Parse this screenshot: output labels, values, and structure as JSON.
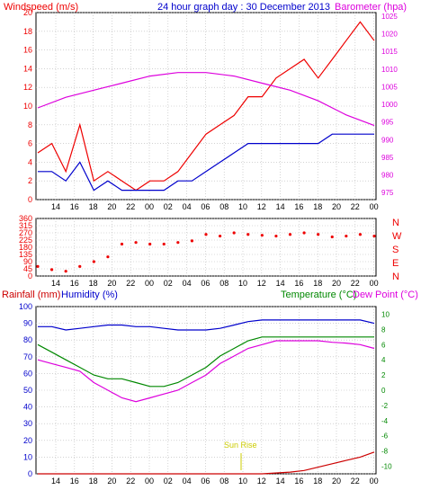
{
  "header": {
    "wind_title": "Windspeed (m/s)",
    "graph_title": "24 hour graph day : 30 December 2013",
    "baro_title": "Barometer (hpa)",
    "rain_title": "Rainfall (mm)",
    "humidity_title": "Humidity (%)",
    "temperature_title": "Temperature (°C)",
    "dewpoint_title": "Dew Point (°C)"
  },
  "annotations": {
    "sunrise": "Sun Rise"
  },
  "colors": {
    "background": "#ffffff",
    "grid": "#b8b8b8",
    "frame": "#000000",
    "axis_text": "#000000",
    "wind": "#ee0000",
    "gust": "#ee0000",
    "windspeed": "#0000cc",
    "barometer": "#dd00dd",
    "direction": "#ee0000",
    "humidity": "#0000cc",
    "temperature": "#008800",
    "dewpoint": "#dd00dd",
    "rain": "#cc0000",
    "sunrise": "#cccc00"
  },
  "chart_data": [
    {
      "type": "line",
      "id": "wind",
      "title": "Windspeed (m/s)",
      "x_ticks": [
        "14",
        "16",
        "18",
        "20",
        "22",
        "00",
        "02",
        "04",
        "06",
        "08",
        "10",
        "12",
        "14",
        "16",
        "18",
        "20",
        "22",
        "00"
      ],
      "y_ticks": [
        0,
        2,
        4,
        6,
        8,
        10,
        12,
        14,
        16,
        18,
        20
      ],
      "ylim": [
        0,
        20
      ],
      "y2_title": "Barometer (hpa)",
      "y2_ticks": [
        975,
        980,
        985,
        990,
        995,
        1000,
        1005,
        1010,
        1015,
        1020,
        1025
      ],
      "y2lim": [
        973,
        1026
      ],
      "grid": true,
      "series": [
        {
          "name": "gust",
          "axis": "left",
          "x": [
            0,
            1,
            2,
            3,
            4,
            5,
            6,
            7,
            8,
            9,
            10,
            11,
            12,
            13,
            14,
            15,
            16,
            17,
            18,
            19,
            20,
            21,
            22,
            23,
            24
          ],
          "y": [
            5,
            6,
            3,
            8,
            2,
            3,
            2,
            1,
            2,
            2,
            3,
            5,
            7,
            8,
            9,
            11,
            11,
            13,
            14,
            15,
            13,
            15,
            17,
            19,
            17
          ]
        },
        {
          "name": "speed",
          "axis": "left",
          "x": [
            0,
            1,
            2,
            3,
            4,
            5,
            6,
            7,
            8,
            9,
            10,
            11,
            12,
            13,
            14,
            15,
            16,
            17,
            18,
            19,
            20,
            21,
            22,
            23,
            24
          ],
          "y": [
            3,
            3,
            2,
            4,
            1,
            2,
            1,
            1,
            1,
            1,
            2,
            2,
            3,
            4,
            5,
            6,
            6,
            6,
            6,
            6,
            6,
            7,
            7,
            7,
            7
          ]
        },
        {
          "name": "barometer",
          "axis": "right",
          "x": [
            0,
            2,
            4,
            6,
            8,
            10,
            12,
            14,
            16,
            18,
            20,
            22,
            24
          ],
          "y": [
            999,
            1002,
            1004,
            1006,
            1008,
            1009,
            1009,
            1008,
            1006,
            1004,
            1001,
            997,
            994
          ]
        }
      ]
    },
    {
      "type": "scatter",
      "id": "direction",
      "x_ticks": [
        "14",
        "16",
        "18",
        "20",
        "22",
        "00",
        "02",
        "04",
        "06",
        "08",
        "10",
        "12",
        "14",
        "16",
        "18",
        "20",
        "22",
        "00"
      ],
      "y_ticks": [
        0,
        45,
        90,
        135,
        180,
        225,
        270,
        315,
        360
      ],
      "ylim": [
        0,
        360
      ],
      "y2_labels": [
        "N",
        "W",
        "S",
        "E",
        "N"
      ],
      "grid": true,
      "series": [
        {
          "name": "wind direction",
          "x": [
            0,
            1,
            2,
            3,
            4,
            5,
            6,
            7,
            8,
            9,
            10,
            11,
            12,
            13,
            14,
            15,
            16,
            17,
            18,
            19,
            20,
            21,
            22,
            23,
            24
          ],
          "y": [
            60,
            40,
            30,
            60,
            90,
            120,
            200,
            210,
            200,
            200,
            210,
            220,
            260,
            250,
            270,
            260,
            255,
            250,
            260,
            270,
            260,
            245,
            250,
            260,
            250
          ]
        }
      ]
    },
    {
      "type": "line",
      "id": "climate",
      "title": "Rainfall (mm)",
      "x_ticks": [
        "14",
        "16",
        "18",
        "20",
        "22",
        "00",
        "02",
        "04",
        "06",
        "08",
        "10",
        "12",
        "14",
        "16",
        "18",
        "20",
        "22",
        "00"
      ],
      "y_ticks": [
        0,
        10,
        20,
        30,
        40,
        50,
        60,
        70,
        80,
        90,
        100
      ],
      "ylim": [
        0,
        100
      ],
      "y2_title": "Temperature (°C)",
      "y2_ticks": [
        -10,
        -8,
        -6,
        -4,
        -2,
        0,
        2,
        4,
        6,
        8,
        10
      ],
      "y2lim": [
        -11,
        11
      ],
      "grid": true,
      "series": [
        {
          "name": "humidity",
          "axis": "left",
          "x": [
            0,
            1,
            2,
            3,
            4,
            5,
            6,
            7,
            8,
            9,
            10,
            11,
            12,
            13,
            14,
            15,
            16,
            17,
            18,
            19,
            20,
            21,
            22,
            23,
            24
          ],
          "y": [
            88,
            88,
            86,
            87,
            88,
            89,
            89,
            88,
            88,
            87,
            86,
            86,
            86,
            87,
            89,
            91,
            92,
            92,
            92,
            92,
            92,
            92,
            92,
            92,
            90
          ]
        },
        {
          "name": "temperature",
          "axis": "right",
          "x": [
            0,
            1,
            2,
            3,
            4,
            5,
            6,
            7,
            8,
            9,
            10,
            11,
            12,
            13,
            14,
            15,
            16,
            17,
            18,
            19,
            20,
            21,
            22,
            23,
            24
          ],
          "y": [
            6,
            5,
            4,
            3,
            2,
            1.5,
            1.5,
            1,
            0.5,
            0.5,
            1,
            2,
            3,
            4.5,
            5.5,
            6.5,
            7,
            7,
            7,
            7,
            7,
            7,
            7,
            7,
            7
          ]
        },
        {
          "name": "dewpoint",
          "axis": "right",
          "x": [
            0,
            1,
            2,
            3,
            4,
            5,
            6,
            7,
            8,
            9,
            10,
            11,
            12,
            13,
            14,
            15,
            16,
            17,
            18,
            19,
            20,
            21,
            22,
            23,
            24
          ],
          "y": [
            4,
            3.5,
            3,
            2.5,
            1,
            0,
            -1,
            -1.5,
            -1,
            -0.5,
            0,
            1,
            2,
            3.5,
            4.5,
            5.5,
            6,
            6.5,
            6.5,
            6.5,
            6.5,
            6.3,
            6.2,
            6,
            5.5
          ]
        },
        {
          "name": "rainfall",
          "axis": "left",
          "x": [
            0,
            4,
            8,
            12,
            16,
            18,
            19,
            20,
            21,
            22,
            23,
            24
          ],
          "y": [
            0,
            0,
            0,
            0,
            0,
            1,
            2,
            4,
            6,
            8,
            10,
            13
          ]
        }
      ]
    }
  ]
}
